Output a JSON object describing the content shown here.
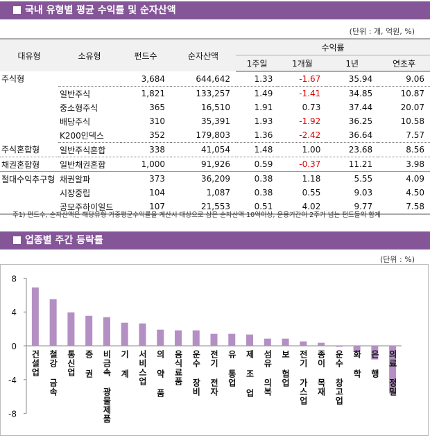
{
  "section1": {
    "title": "국내 유형별 평균 수익률 및 순자산액",
    "unit": "(단위 : 개, 억원, %)"
  },
  "table": {
    "headers": {
      "major": "대유형",
      "minor": "소유형",
      "funds": "펀드수",
      "assets": "순자산액",
      "returns": "수익률",
      "w1": "1주일",
      "m1": "1개월",
      "y1": "1년",
      "ytd": "연초후"
    },
    "rows": [
      {
        "major": "주식형",
        "minor": "",
        "funds": "3,684",
        "assets": "644,642",
        "w1": "1.33",
        "m1": "-1.67",
        "y1": "35.94",
        "ytd": "9.06"
      },
      {
        "major": "",
        "minor": "일반주식",
        "funds": "1,821",
        "assets": "133,257",
        "w1": "1.49",
        "m1": "-1.41",
        "y1": "34.85",
        "ytd": "10.87"
      },
      {
        "major": "",
        "minor": "중소형주식",
        "funds": "365",
        "assets": "16,510",
        "w1": "1.91",
        "m1": "0.73",
        "y1": "37.44",
        "ytd": "20.07"
      },
      {
        "major": "",
        "minor": "배당주식",
        "funds": "310",
        "assets": "35,391",
        "w1": "1.93",
        "m1": "-1.92",
        "y1": "36.25",
        "ytd": "10.58"
      },
      {
        "major": "",
        "minor": "K200인덱스",
        "funds": "352",
        "assets": "179,803",
        "w1": "1.36",
        "m1": "-2.42",
        "y1": "36.64",
        "ytd": "7.57"
      },
      {
        "major": "주식혼합형",
        "minor": "일반주식혼합",
        "funds": "338",
        "assets": "41,054",
        "w1": "1.48",
        "m1": "1.00",
        "y1": "23.68",
        "ytd": "8.56"
      },
      {
        "major": "채권혼합형",
        "minor": "일반채권혼합",
        "funds": "1,000",
        "assets": "91,926",
        "w1": "0.59",
        "m1": "-0.37",
        "y1": "11.21",
        "ytd": "3.98"
      },
      {
        "major": "절대수익추구형",
        "minor": "채권알파",
        "funds": "373",
        "assets": "36,209",
        "w1": "0.38",
        "m1": "1.18",
        "y1": "5.55",
        "ytd": "4.09"
      },
      {
        "major": "",
        "minor": "시장중립",
        "funds": "104",
        "assets": "1,087",
        "w1": "0.38",
        "m1": "0.55",
        "y1": "9.03",
        "ytd": "4.50"
      },
      {
        "major": "",
        "minor": "공모주하이일드",
        "funds": "107",
        "assets": "21,553",
        "w1": "0.51",
        "m1": "4.02",
        "y1": "9.77",
        "ytd": "7.58"
      }
    ],
    "note": "주1) 펀드수, 순자산액은 해당유형 가중평균수익률을 계산시 대상으로 삼은 순자산액 10억이상, 운용기간이 2주가 넘는 펀드들의 합계",
    "negative_color": "#e00000"
  },
  "section2": {
    "title": "업종별 주간 등락률",
    "unit": "(단위 : %)"
  },
  "chart_data": {
    "type": "bar",
    "categories": [
      "건설업",
      "철강 금속",
      "통신업",
      "증 권",
      "비금속 광물제품",
      "기 계",
      "서비스업",
      "의 약 품",
      "음식료품",
      "운수 장비",
      "전기 전자",
      "유 통업",
      "제 조 업",
      "섬유 의복",
      "보 험업",
      "전기 가스업",
      "종이 목재",
      "운수 창고업",
      "화 학",
      "은 행",
      "의료 정밀"
    ],
    "values": [
      6.91,
      5.52,
      3.96,
      3.55,
      3.39,
      2.73,
      2.65,
      1.91,
      1.83,
      1.83,
      1.42,
      1.42,
      1.34,
      0.85,
      0.85,
      0.52,
      0.36,
      -0.11,
      -0.74,
      -1.61,
      -5.63
    ],
    "ylim": [
      -8,
      8
    ],
    "yticks": [
      "8",
      "4",
      "0",
      "-4",
      "-8"
    ],
    "bar_color": "#b48fc4",
    "grid": false
  }
}
